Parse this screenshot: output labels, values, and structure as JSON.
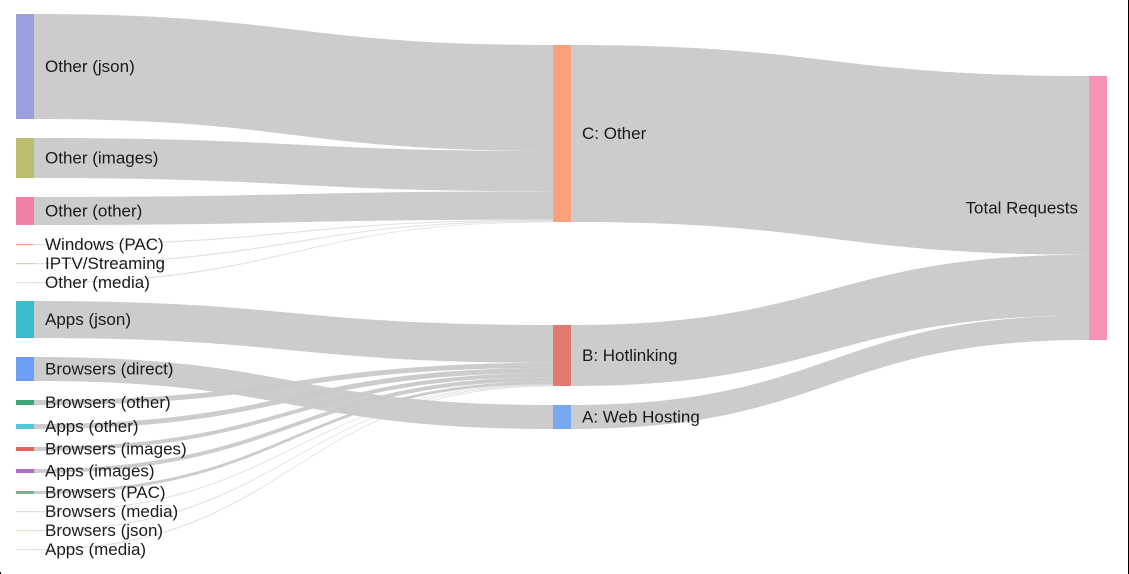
{
  "chart_data": {
    "type": "sankey",
    "nodes": [
      {
        "id": "json",
        "label": "Other (json)",
        "color": "#9aa0dc"
      },
      {
        "id": "images",
        "label": "Other (images)",
        "color": "#bcbd6a"
      },
      {
        "id": "other",
        "label": "Other (other)",
        "color": "#f27fa4"
      },
      {
        "id": "winpac",
        "label": "Windows (PAC)",
        "color": "#f4a08c"
      },
      {
        "id": "iptv",
        "label": "IPTV/Streaming",
        "color": "#c8d8a0"
      },
      {
        "id": "media",
        "label": "Other (media)",
        "color": "#e8e8e8"
      },
      {
        "id": "appsjson",
        "label": "Apps (json)",
        "color": "#3bbccb"
      },
      {
        "id": "brdirect",
        "label": "Browsers (direct)",
        "color": "#6d9ef2"
      },
      {
        "id": "brother",
        "label": "Browsers (other)",
        "color": "#3da876"
      },
      {
        "id": "appsother",
        "label": "Apps (other)",
        "color": "#55c6d6"
      },
      {
        "id": "brimages",
        "label": "Browsers (images)",
        "color": "#e5635c"
      },
      {
        "id": "appsimages",
        "label": "Apps (images)",
        "color": "#b16bcc"
      },
      {
        "id": "brpac",
        "label": "Browsers (PAC)",
        "color": "#5cc08c"
      },
      {
        "id": "brmedia",
        "label": "Browsers (media)",
        "color": "#dcdcdc"
      },
      {
        "id": "brjson",
        "label": "Browsers (json)",
        "color": "#f2ecb0"
      },
      {
        "id": "appsmedia",
        "label": "Apps (media)",
        "color": "#e4e4e4"
      },
      {
        "id": "C",
        "label": "C: Other",
        "color": "#fb9f7d"
      },
      {
        "id": "B",
        "label": "B: Hotlinking",
        "color": "#e37a72"
      },
      {
        "id": "A",
        "label": "A: Web Hosting",
        "color": "#79a8f2"
      },
      {
        "id": "T",
        "label": "Total Requests",
        "color": "#f592b5"
      }
    ],
    "links": [
      {
        "source": "json",
        "target": "C",
        "value": 105
      },
      {
        "source": "images",
        "target": "C",
        "value": 40
      },
      {
        "source": "other",
        "target": "C",
        "value": 28
      },
      {
        "source": "winpac",
        "target": "C",
        "value": 1
      },
      {
        "source": "iptv",
        "target": "C",
        "value": 1
      },
      {
        "source": "media",
        "target": "C",
        "value": 0.4
      },
      {
        "source": "appsjson",
        "target": "B",
        "value": 37
      },
      {
        "source": "brdirect",
        "target": "A",
        "value": 24
      },
      {
        "source": "brother",
        "target": "B",
        "value": 5
      },
      {
        "source": "appsother",
        "target": "B",
        "value": 5
      },
      {
        "source": "brimages",
        "target": "B",
        "value": 4
      },
      {
        "source": "appsimages",
        "target": "B",
        "value": 4
      },
      {
        "source": "brpac",
        "target": "B",
        "value": 3
      },
      {
        "source": "brmedia",
        "target": "B",
        "value": 0.5
      },
      {
        "source": "brjson",
        "target": "B",
        "value": 0.8
      },
      {
        "source": "appsmedia",
        "target": "B",
        "value": 0.4
      },
      {
        "source": "C",
        "target": "T",
        "value": 175.4
      },
      {
        "source": "B",
        "target": "T",
        "value": 59.7
      },
      {
        "source": "A",
        "target": "T",
        "value": 24
      }
    ]
  }
}
